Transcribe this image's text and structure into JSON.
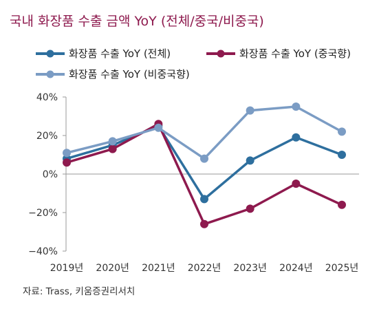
{
  "chart_data": {
    "type": "line",
    "title": "국내 화장품 수출 금액 YoY (전체/중국/비중국)",
    "categories": [
      "2019년",
      "2020년",
      "2021년",
      "2022년",
      "2023년",
      "2024년",
      "2025년"
    ],
    "series": [
      {
        "name": "화장품 수출 YoY (전체)",
        "color": "#2e6f9e",
        "values": [
          8,
          15,
          25,
          -13,
          7,
          19,
          10
        ]
      },
      {
        "name": "화장품 수출 YoY (중국향)",
        "color": "#8e1a4e",
        "values": [
          6,
          13,
          26,
          -26,
          -18,
          -5,
          -16
        ]
      },
      {
        "name": "화장품 수출 YoY (비중국향)",
        "color": "#7b9cc4",
        "values": [
          11,
          17,
          24,
          8,
          33,
          35,
          22
        ]
      }
    ],
    "ylim": [
      -40,
      40
    ],
    "yticks": [
      40,
      20,
      0,
      -20,
      -40
    ],
    "ytick_labels": [
      "40%",
      "20%",
      "0%",
      "−20%",
      "−40%"
    ],
    "xlabel": "",
    "ylabel": "",
    "grid": false,
    "legend_position": "top"
  },
  "source": "자료: Trass, 키움증권리서치"
}
